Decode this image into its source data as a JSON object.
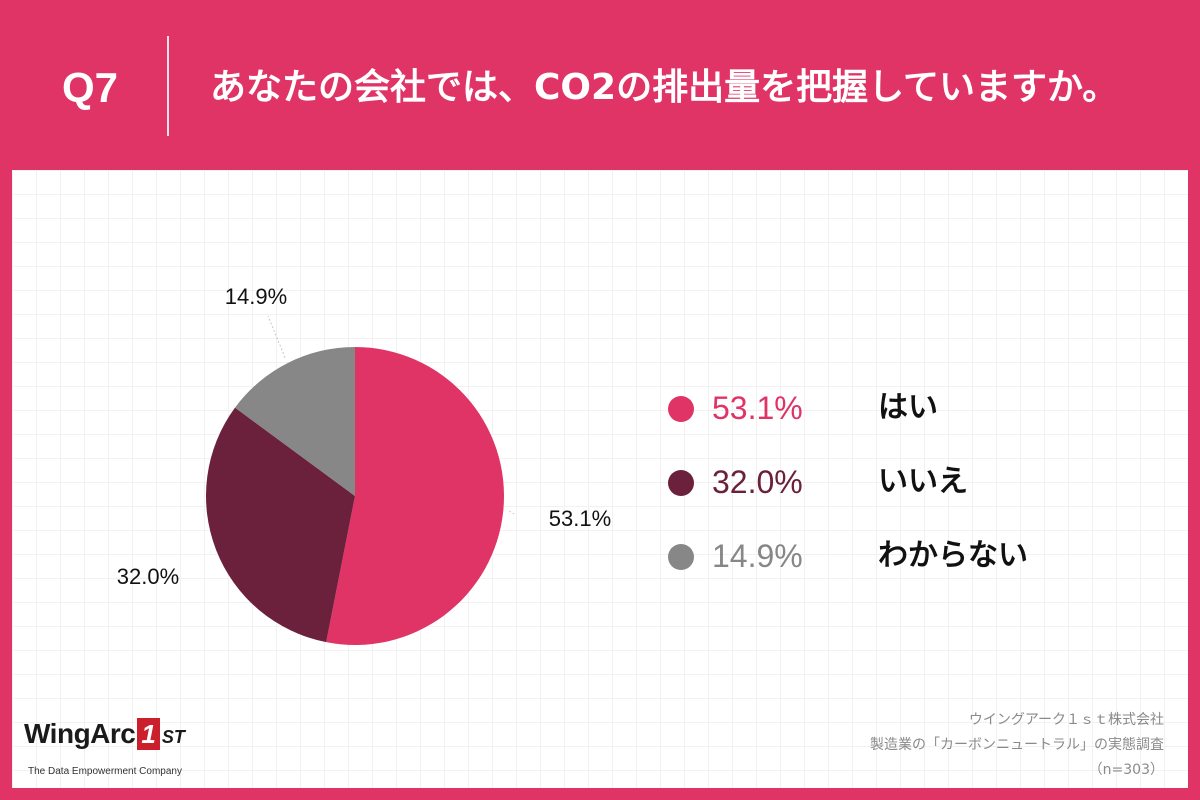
{
  "header": {
    "question_number": "Q7",
    "question_text": "あなたの会社では、CO2の排出量を把握していますか。"
  },
  "colors": {
    "background": "#e03366",
    "slice_yes": "#e03366",
    "slice_no": "#6b203c",
    "slice_unknown": "#878787"
  },
  "chart_data": {
    "type": "pie",
    "slices": [
      {
        "label": "はい",
        "value": 53.1,
        "display": "53.1%",
        "color": "#e03366"
      },
      {
        "label": "いいえ",
        "value": 32.0,
        "display": "32.0%",
        "color": "#6b203c"
      },
      {
        "label": "わからない",
        "value": 14.9,
        "display": "14.9%",
        "color": "#878787"
      }
    ],
    "start_angle": "12 o'clock",
    "direction": "clockwise",
    "legend_position": "right"
  },
  "legend": {
    "items": [
      {
        "pct": "53.1%",
        "label": "はい",
        "color": "#e03366"
      },
      {
        "pct": "32.0%",
        "label": "いいえ",
        "color": "#6b203c"
      },
      {
        "pct": "14.9%",
        "label": "わからない",
        "color": "#878787"
      }
    ]
  },
  "footer": {
    "logo": {
      "wordmark": "WingArc",
      "mark": "1",
      "suffix": "ST",
      "tagline": "The Data Empowerment Company"
    },
    "source_lines": [
      "ウイングアーク１ｓｔ株式会社",
      "製造業の「カーボンニュートラル」の実態調査",
      "（n=303）"
    ]
  }
}
